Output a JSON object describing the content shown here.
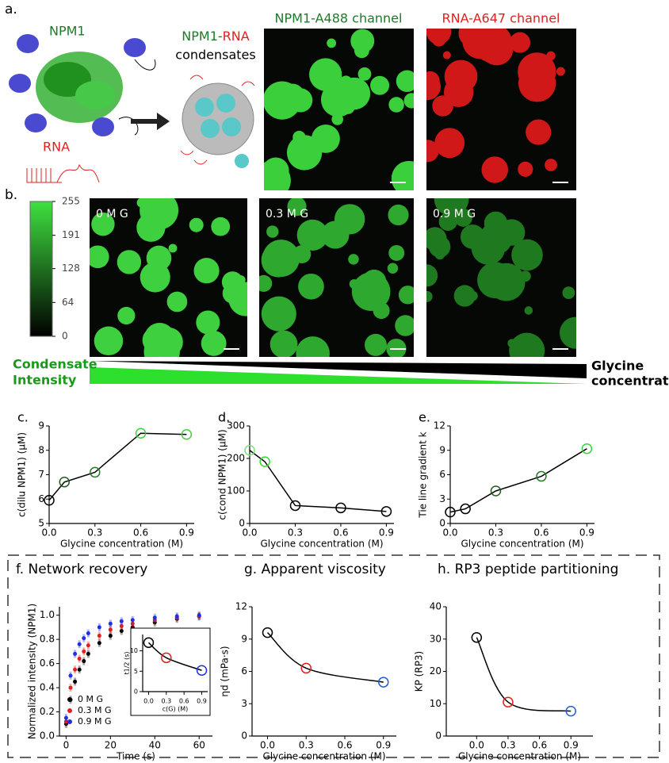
{
  "panel_a": {
    "label": "a.",
    "protein": "NPM1",
    "rna": "RNA",
    "condensate_title": [
      "NPM1-",
      "RNA"
    ],
    "condensates": "condensates",
    "channel_1": "NPM1-A488 channel",
    "channel_2": "RNA-A647 channel"
  },
  "panel_b": {
    "label": "b.",
    "colorbar": {
      "lim": [
        0,
        255
      ],
      "ticks": [
        255,
        191,
        128,
        64,
        0
      ]
    },
    "image_labels": [
      "0 M G",
      "0.3 M G",
      "0.9 M G"
    ],
    "intensity_label": [
      "Condensate",
      "Intensity"
    ],
    "glycine_label": [
      "Glycine",
      "concentration"
    ]
  },
  "chart_data": [
    {
      "type": "line",
      "panel": "c.",
      "x_label": "Glycine concentration (M)",
      "y_label": "c(dilu NPM1) (μM)",
      "x": [
        0,
        0.1,
        0.3,
        0.6,
        0.9
      ],
      "values": [
        5.95,
        6.7,
        7.1,
        8.7,
        8.65
      ],
      "colors": [
        "#000000",
        "#1d5e1d",
        "#2a7a2a",
        "#3fd23f",
        "#3fd23f"
      ],
      "xlim": [
        0,
        0.95
      ],
      "xticks": [
        {
          "value": 0,
          "label": "0.0"
        },
        0.3,
        0.6,
        0.9
      ],
      "ylim": [
        5,
        9
      ],
      "yticks": [
        5,
        6,
        7,
        8,
        9
      ],
      "curve": "straight"
    },
    {
      "type": "line",
      "panel": "d.",
      "x_label": "Glycine concentration (M)",
      "y_label": "c(cond NPM1) (μM)",
      "x": [
        0,
        0.1,
        0.3,
        0.6,
        0.9
      ],
      "values": [
        225,
        190,
        55,
        48,
        37
      ],
      "colors": [
        "#7fe07f",
        "#3fd23f",
        "#000000",
        "#000000",
        "#000000"
      ],
      "xlim": [
        0,
        0.95
      ],
      "xticks": [
        {
          "value": 0,
          "label": "0.0"
        },
        0.3,
        0.6,
        0.9
      ],
      "ylim": [
        0,
        300
      ],
      "yticks": [
        0,
        100,
        200,
        300
      ],
      "curve": "straight"
    },
    {
      "type": "line",
      "panel": "e.",
      "x_label": "Glycine concentration (M)",
      "y_label": "Tie line gradient k",
      "x": [
        0,
        0.1,
        0.3,
        0.6,
        0.9
      ],
      "values": [
        1.4,
        1.8,
        4.0,
        5.8,
        9.2
      ],
      "colors": [
        "#000000",
        "#000000",
        "#1d5e1d",
        "#2a7a2a",
        "#3fd23f"
      ],
      "xlim": [
        0,
        0.95
      ],
      "xticks": [
        {
          "value": 0,
          "label": "0.0"
        },
        0.3,
        0.6,
        0.9
      ],
      "ylim": [
        0,
        12
      ],
      "yticks": [
        0,
        3,
        6,
        9,
        12
      ],
      "curve": "straight"
    },
    {
      "type": "scatter",
      "panel": "f. Network recovery",
      "x_label": "Time (s)",
      "y_label": "Normalized intensity (NPM1)",
      "x": [
        0,
        2,
        4,
        6,
        8,
        10,
        15,
        20,
        25,
        30,
        40,
        50,
        60
      ],
      "xlim": [
        -3,
        66
      ],
      "xticks": [
        0,
        20,
        40,
        60
      ],
      "ylim": [
        0,
        1.07
      ],
      "yticks": [
        {
          "value": 0,
          "label": "0.0"
        },
        0.2,
        0.4,
        0.6,
        0.8,
        {
          "value": 1,
          "label": "1.0"
        }
      ],
      "series": [
        {
          "name": "0 M G",
          "color": "#000000",
          "values": [
            0.1,
            0.3,
            0.45,
            0.55,
            0.62,
            0.68,
            0.77,
            0.83,
            0.87,
            0.9,
            0.94,
            0.97,
            0.99
          ]
        },
        {
          "name": "0.3 M G",
          "color": "#e02020",
          "values": [
            0.12,
            0.4,
            0.55,
            0.64,
            0.7,
            0.75,
            0.83,
            0.88,
            0.91,
            0.93,
            0.96,
            0.98,
            0.99
          ]
        },
        {
          "name": "0.9 M G",
          "color": "#2030e0",
          "values": [
            0.15,
            0.5,
            0.68,
            0.76,
            0.81,
            0.85,
            0.9,
            0.93,
            0.95,
            0.96,
            0.98,
            0.99,
            1.0
          ]
        }
      ],
      "inset": {
        "type": "line",
        "x_label": "c(G) (M)",
        "y_label": "t1/2 (s)",
        "x": [
          0,
          0.3,
          0.9
        ],
        "values": [
          12,
          8.3,
          5.2
        ],
        "colors": [
          "#000000",
          "#e02020",
          "#2030e0"
        ],
        "xlim": [
          -0.1,
          1.0
        ],
        "xticks": [
          {
            "value": 0,
            "label": "0.0"
          },
          0.3,
          0.6,
          0.9
        ],
        "ylim": [
          0,
          14
        ],
        "yticks": [
          0,
          5,
          10
        ],
        "curve": "fit"
      }
    },
    {
      "type": "line",
      "panel": "g. Apparent viscosity",
      "x_label": "Glycine concentration (M)",
      "y_label": "ηd (mPa·s)",
      "x": [
        0,
        0.3,
        0.9
      ],
      "values": [
        9.6,
        6.3,
        5.0
      ],
      "colors": [
        "#000000",
        "#e02020",
        "#2060d0"
      ],
      "xlim": [
        -0.12,
        1.0
      ],
      "xticks": [
        {
          "value": 0,
          "label": "0.0"
        },
        0.3,
        0.6,
        0.9
      ],
      "ylim": [
        0,
        12
      ],
      "yticks": [
        0,
        3,
        6,
        9,
        12
      ],
      "curve": "fit"
    },
    {
      "type": "line",
      "panel": "h. RP3 peptide partitioning",
      "x_label": "Glycine concentration (M)",
      "y_label": "KP (RP3)",
      "x": [
        0,
        0.3,
        0.9
      ],
      "values": [
        30.5,
        10.5,
        7.7
      ],
      "colors": [
        "#000000",
        "#e02020",
        "#2060d0"
      ],
      "xlim": [
        -0.29,
        1.11
      ],
      "xticks": [
        {
          "value": 0,
          "label": "0.0"
        },
        0.3,
        0.6,
        0.9
      ],
      "ylim": [
        0,
        40
      ],
      "yticks": [
        0,
        10,
        20,
        30,
        40
      ],
      "curve": "fit"
    }
  ]
}
